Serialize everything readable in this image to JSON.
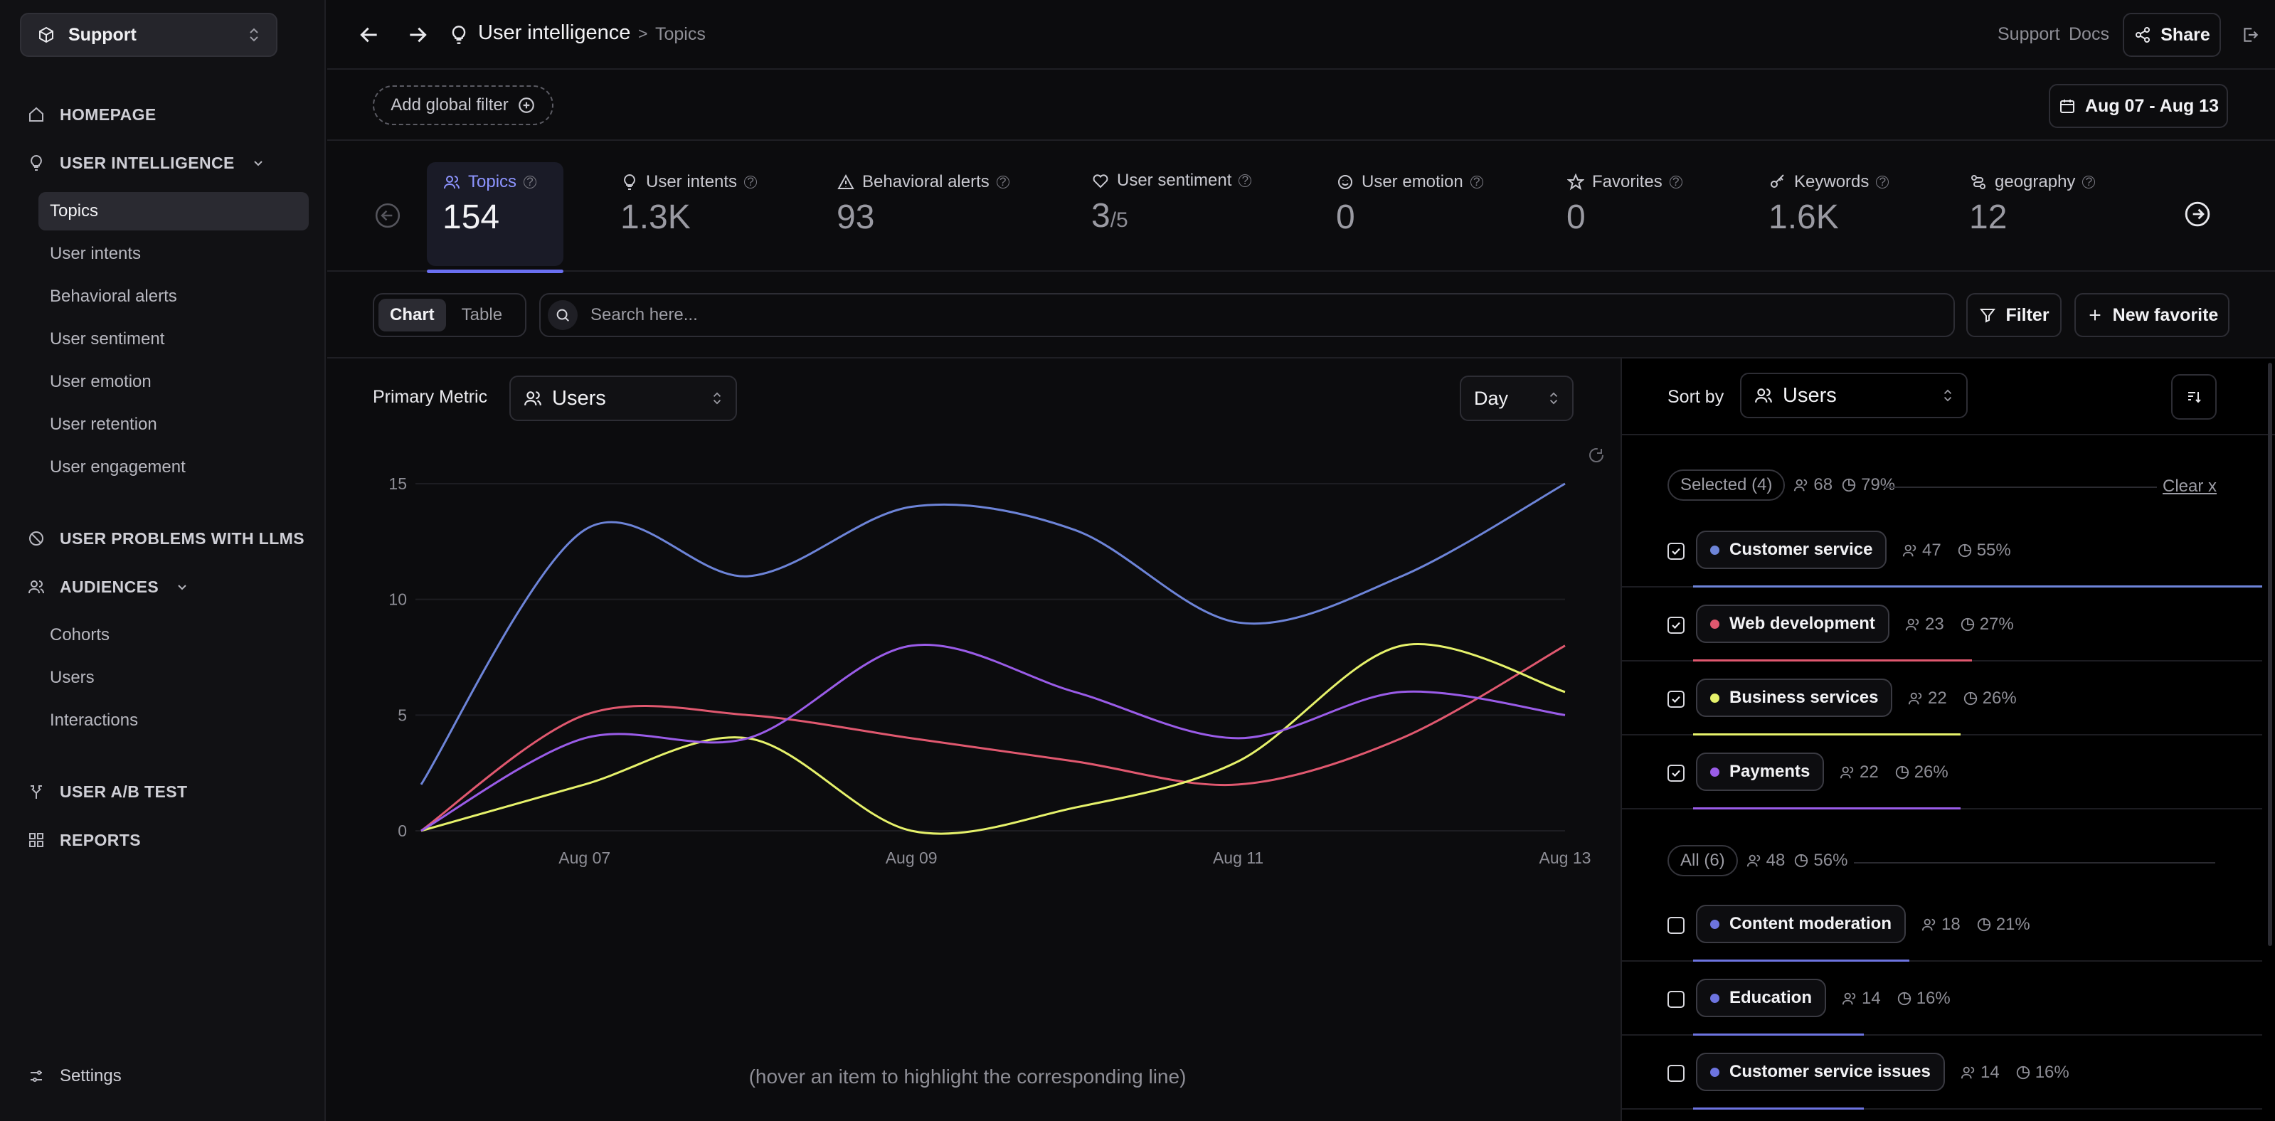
{
  "sidebar": {
    "workspace": "Support",
    "homepage": "HOMEPAGE",
    "user_intelligence": "USER INTELLIGENCE",
    "ui_items": [
      "Topics",
      "User intents",
      "Behavioral alerts",
      "User sentiment",
      "User emotion",
      "User retention",
      "User engagement"
    ],
    "problems": "USER PROBLEMS WITH LLMS",
    "audiences": "AUDIENCES",
    "aud_items": [
      "Cohorts",
      "Users",
      "Interactions"
    ],
    "ab_test": "USER A/B TEST",
    "reports": "REPORTS",
    "settings": "Settings"
  },
  "topbar": {
    "title": "User intelligence",
    "sep": ">",
    "subtitle": "Topics",
    "support": "Support",
    "docs": "Docs",
    "share": "Share"
  },
  "filters": {
    "global": "Add global filter",
    "date": "Aug 07 - Aug 13"
  },
  "metrics": [
    {
      "label": "Topics",
      "value": "154",
      "icon": "users-icon"
    },
    {
      "label": "User intents",
      "value": "1.3K",
      "icon": "bulb-icon"
    },
    {
      "label": "Behavioral alerts",
      "value": "93",
      "icon": "warning-icon"
    },
    {
      "label": "User sentiment",
      "value": "3",
      "value_sub": "/5",
      "icon": "heart-icon"
    },
    {
      "label": "User emotion",
      "value": "0",
      "icon": "smile-icon"
    },
    {
      "label": "Favorites",
      "value": "0",
      "icon": "star-icon"
    },
    {
      "label": "Keywords",
      "value": "1.6K",
      "icon": "key-icon"
    },
    {
      "label": "geography",
      "value": "12",
      "icon": "geo-icon"
    }
  ],
  "toolbar": {
    "chart": "Chart",
    "table": "Table",
    "search_placeholder": "Search here...",
    "filter": "Filter",
    "new_favorite": "New favorite"
  },
  "chart_panel": {
    "primary_metric_label": "Primary Metric",
    "primary_metric_value": "Users",
    "granularity": "Day",
    "hint": "(hover an item to highlight the corresponding line)"
  },
  "chart_data": {
    "type": "line",
    "x": [
      "Aug 06",
      "Aug 07",
      "Aug 08",
      "Aug 09",
      "Aug 10",
      "Aug 11",
      "Aug 12",
      "Aug 13"
    ],
    "x_ticks": [
      "Aug 07",
      "Aug 09",
      "Aug 11",
      "Aug 13"
    ],
    "y_ticks": [
      "0",
      "5",
      "10",
      "15"
    ],
    "ylim": [
      0,
      15
    ],
    "grid": true,
    "series": [
      {
        "name": "Customer service",
        "color": "#6d84d8",
        "values": [
          2,
          13,
          11,
          14,
          13,
          9,
          11,
          15
        ]
      },
      {
        "name": "Web development",
        "color": "#e0586f",
        "values": [
          0,
          5,
          5,
          4,
          3,
          2,
          4,
          8
        ]
      },
      {
        "name": "Business services",
        "color": "#e6f26b",
        "values": [
          0,
          2,
          4,
          0,
          1,
          3,
          8,
          6
        ]
      },
      {
        "name": "Payments",
        "color": "#9a5ce8",
        "values": [
          0,
          4,
          4,
          8,
          6,
          4,
          6,
          5
        ]
      }
    ]
  },
  "right_panel": {
    "sort_by": "Sort by",
    "sort_value": "Users",
    "selected": {
      "label": "Selected (4)",
      "users": "68",
      "pct": "79%",
      "clear": "Clear x"
    },
    "all": {
      "label": "All (6)",
      "users": "48",
      "pct": "56%"
    },
    "selected_items": [
      {
        "name": "Customer service",
        "users": "47",
        "pct": "55%",
        "color": "#6d84d8",
        "share": 1.0
      },
      {
        "name": "Web development",
        "users": "23",
        "pct": "27%",
        "color": "#e0586f",
        "share": 0.49
      },
      {
        "name": "Business services",
        "users": "22",
        "pct": "26%",
        "color": "#e6f26b",
        "share": 0.47
      },
      {
        "name": "Payments",
        "users": "22",
        "pct": "26%",
        "color": "#9a5ce8",
        "share": 0.47
      }
    ],
    "all_items": [
      {
        "name": "Content moderation",
        "users": "18",
        "pct": "21%",
        "color": "#6d74e0",
        "share": 0.38
      },
      {
        "name": "Education",
        "users": "14",
        "pct": "16%",
        "color": "#6d74e0",
        "share": 0.3
      },
      {
        "name": "Customer service issues",
        "users": "14",
        "pct": "16%",
        "color": "#6d74e0",
        "share": 0.3
      }
    ]
  }
}
